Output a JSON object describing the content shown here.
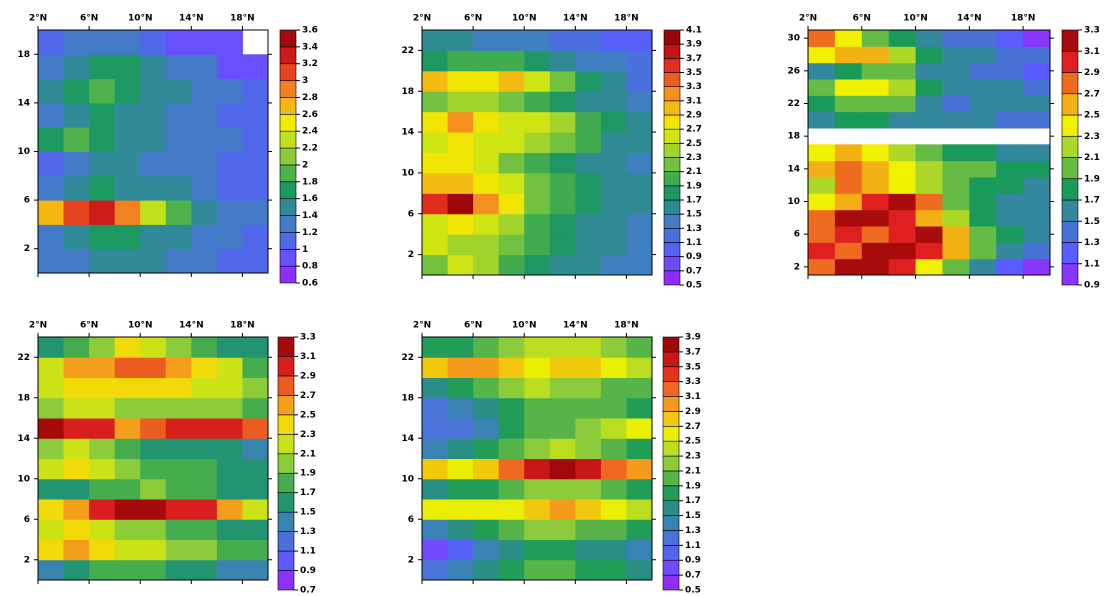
{
  "chart_data": [
    {
      "type": "heatmap",
      "colormap": [
        "#a020ff",
        "#5a5cff",
        "#3f7fc0",
        "#1a9a5a",
        "#8ccc3a",
        "#f0f000",
        "#f59020",
        "#e02020",
        "#8b0000"
      ],
      "x": [
        3,
        5,
        7,
        9,
        11,
        13,
        15,
        17,
        19
      ],
      "xlim": [
        2,
        20
      ],
      "xticks": [
        {
          "value": 2,
          "label": "2°N"
        },
        {
          "value": 6,
          "label": "6°N"
        },
        {
          "value": 10,
          "label": "10°N"
        },
        {
          "value": 14,
          "label": "14°N"
        },
        {
          "value": 18,
          "label": "18°N"
        }
      ],
      "y": [
        1,
        3,
        5,
        7,
        9,
        11,
        13,
        15,
        17,
        19
      ],
      "ylim": [
        0,
        20
      ],
      "yticks": [
        2,
        6,
        10,
        14,
        18
      ],
      "z": [
        [
          1.2,
          1.3,
          1.5,
          1.5,
          1.4,
          1.3,
          1.2,
          1.1,
          1.0
        ],
        [
          1.3,
          1.5,
          1.7,
          1.6,
          1.5,
          1.4,
          1.3,
          1.2,
          1.1
        ],
        [
          2.6,
          3.0,
          3.3,
          2.9,
          2.2,
          1.8,
          1.5,
          1.3,
          1.2
        ],
        [
          1.2,
          1.4,
          1.6,
          1.5,
          1.5,
          1.4,
          1.3,
          1.1,
          1.0
        ],
        [
          1.1,
          1.3,
          1.4,
          1.4,
          1.3,
          1.2,
          1.2,
          1.1,
          1.0
        ],
        [
          1.6,
          1.9,
          1.7,
          1.5,
          1.4,
          1.3,
          1.2,
          1.2,
          1.1
        ],
        [
          1.3,
          1.5,
          1.6,
          1.5,
          1.4,
          1.3,
          1.2,
          1.1,
          1.1
        ],
        [
          1.4,
          1.6,
          1.8,
          1.7,
          1.5,
          1.4,
          1.3,
          1.2,
          1.1
        ],
        [
          1.3,
          1.5,
          1.6,
          1.6,
          1.5,
          1.3,
          1.2,
          0.9,
          0.8
        ],
        [
          1.1,
          1.2,
          1.3,
          1.2,
          1.1,
          0.9,
          0.8,
          0.8,
          null
        ]
      ],
      "colorbar_ticks": [
        0.6,
        0.8,
        1,
        1.2,
        1.4,
        1.6,
        1.8,
        2,
        2.2,
        2.4,
        2.6,
        2.8,
        3,
        3.2,
        3.4,
        3.6
      ]
    },
    {
      "type": "heatmap",
      "colormap": [
        "#a020ff",
        "#5a5cff",
        "#3f7fc0",
        "#1a9a5a",
        "#8ccc3a",
        "#f0f000",
        "#f59020",
        "#e02020",
        "#8b0000"
      ],
      "x": [
        3,
        5,
        7,
        9,
        11,
        13,
        15,
        17,
        19
      ],
      "xlim": [
        2,
        20
      ],
      "xticks": [
        {
          "value": 2,
          "label": "2°N"
        },
        {
          "value": 6,
          "label": "6°N"
        },
        {
          "value": 10,
          "label": "10°N"
        },
        {
          "value": 14,
          "label": "14°N"
        },
        {
          "value": 18,
          "label": "18°N"
        }
      ],
      "y": [
        1,
        3,
        5,
        7,
        9,
        11,
        13,
        15,
        17,
        19,
        21,
        23
      ],
      "ylim": [
        0,
        24
      ],
      "yticks": [
        2,
        6,
        10,
        14,
        18,
        22
      ],
      "z": [
        [
          2.2,
          2.5,
          2.4,
          2.0,
          1.8,
          1.6,
          1.5,
          1.4,
          1.4
        ],
        [
          2.6,
          2.4,
          2.3,
          2.1,
          1.9,
          1.7,
          1.6,
          1.5,
          1.4
        ],
        [
          2.5,
          2.7,
          2.5,
          2.3,
          2.0,
          1.8,
          1.6,
          1.5,
          1.4
        ],
        [
          3.6,
          3.9,
          3.2,
          2.7,
          2.2,
          1.9,
          1.7,
          1.5,
          1.5
        ],
        [
          2.9,
          3.0,
          2.8,
          2.5,
          2.2,
          1.9,
          1.7,
          1.6,
          1.5
        ],
        [
          2.8,
          2.7,
          2.5,
          2.2,
          2.0,
          1.8,
          1.6,
          1.5,
          1.4
        ],
        [
          2.5,
          2.7,
          2.6,
          2.5,
          2.4,
          2.2,
          1.9,
          1.6,
          1.5
        ],
        [
          2.7,
          3.1,
          2.8,
          2.6,
          2.6,
          2.3,
          2.0,
          1.7,
          1.5
        ],
        [
          2.2,
          2.4,
          2.3,
          2.2,
          2.0,
          1.8,
          1.6,
          1.5,
          1.4
        ],
        [
          2.9,
          2.7,
          2.8,
          2.9,
          2.5,
          2.1,
          1.8,
          1.5,
          1.2
        ],
        [
          1.8,
          1.9,
          2.0,
          2.0,
          1.8,
          1.6,
          1.4,
          1.3,
          1.2
        ],
        [
          1.5,
          1.5,
          1.4,
          1.4,
          1.3,
          1.2,
          1.1,
          1.0,
          0.9
        ]
      ],
      "colorbar_ticks": [
        0.5,
        0.7,
        0.9,
        1.1,
        1.3,
        1.5,
        1.7,
        1.9,
        2.1,
        2.3,
        2.5,
        2.7,
        2.9,
        3.1,
        3.3,
        3.5,
        3.7,
        3.9,
        4.1
      ]
    },
    {
      "type": "heatmap",
      "colormap": [
        "#a020ff",
        "#5a5cff",
        "#3f7fc0",
        "#1a9a5a",
        "#8ccc3a",
        "#f0f000",
        "#f59020",
        "#e02020",
        "#8b0000"
      ],
      "x": [
        3,
        5,
        7,
        9,
        11,
        13,
        15,
        17,
        19
      ],
      "xlim": [
        2,
        20
      ],
      "xticks": [
        {
          "value": 2,
          "label": "2°N"
        },
        {
          "value": 6,
          "label": "6°N"
        },
        {
          "value": 10,
          "label": "10°N"
        },
        {
          "value": 14,
          "label": "14°N"
        },
        {
          "value": 18,
          "label": "18°N"
        }
      ],
      "y": [
        2,
        4,
        6,
        8,
        10,
        12,
        14,
        16,
        18,
        20,
        22,
        24,
        26,
        28,
        30
      ],
      "ylim": [
        1,
        31
      ],
      "yticks": [
        2,
        6,
        10,
        14,
        18,
        22,
        26,
        30
      ],
      "z": [
        [
          2.8,
          3.2,
          3.3,
          2.9,
          2.4,
          1.9,
          1.5,
          1.1,
          0.9
        ],
        [
          2.9,
          2.8,
          3.1,
          3.2,
          2.9,
          2.6,
          2.0,
          1.5,
          1.3
        ],
        [
          2.7,
          2.9,
          2.7,
          3.0,
          3.3,
          2.6,
          2.0,
          1.7,
          1.5
        ],
        [
          2.8,
          3.1,
          3.2,
          3.0,
          2.6,
          2.1,
          1.8,
          1.6,
          1.5
        ],
        [
          2.3,
          2.6,
          3.0,
          3.2,
          2.7,
          2.0,
          1.8,
          1.6,
          1.5
        ],
        [
          2.2,
          2.7,
          2.5,
          2.3,
          2.1,
          1.9,
          1.8,
          1.7,
          1.6
        ],
        [
          2.5,
          2.7,
          2.6,
          2.4,
          2.2,
          2.0,
          1.9,
          1.8,
          1.7
        ],
        [
          2.3,
          2.6,
          2.3,
          2.1,
          1.9,
          1.8,
          1.7,
          1.6,
          1.6
        ],
        [
          null,
          null,
          null,
          null,
          null,
          null,
          null,
          null,
          null
        ],
        [
          1.6,
          1.7,
          1.7,
          1.6,
          1.5,
          1.5,
          1.5,
          1.4,
          1.4
        ],
        [
          1.8,
          1.9,
          2.0,
          1.9,
          1.6,
          1.4,
          1.5,
          1.6,
          1.5
        ],
        [
          2.0,
          2.3,
          2.3,
          2.1,
          1.8,
          1.6,
          1.5,
          1.5,
          1.4
        ],
        [
          1.6,
          1.8,
          2.0,
          1.9,
          1.6,
          1.5,
          1.4,
          1.3,
          1.2
        ],
        [
          2.3,
          2.6,
          2.5,
          2.2,
          1.8,
          1.6,
          1.5,
          1.4,
          1.3
        ],
        [
          2.7,
          2.4,
          2.0,
          1.7,
          1.5,
          1.4,
          1.3,
          1.1,
          1.0
        ]
      ],
      "colorbar_ticks": [
        0.9,
        1.1,
        1.3,
        1.5,
        1.7,
        1.9,
        2.1,
        2.3,
        2.5,
        2.7,
        2.9,
        3.1,
        3.3
      ]
    },
    {
      "type": "heatmap",
      "colormap": [
        "#a020ff",
        "#5a5cff",
        "#3f7fc0",
        "#1a9a5a",
        "#8ccc3a",
        "#f0f000",
        "#f59020",
        "#e02020",
        "#8b0000"
      ],
      "x": [
        3,
        5,
        7,
        9,
        11,
        13,
        15,
        17,
        19
      ],
      "xlim": [
        2,
        20
      ],
      "xticks": [
        {
          "value": 2,
          "label": "2°N"
        },
        {
          "value": 6,
          "label": "6°N"
        },
        {
          "value": 10,
          "label": "10°N"
        },
        {
          "value": 14,
          "label": "14°N"
        },
        {
          "value": 18,
          "label": "18°N"
        }
      ],
      "y": [
        1,
        3,
        5,
        7,
        9,
        11,
        13,
        15,
        17,
        19,
        21,
        23
      ],
      "ylim": [
        0,
        24
      ],
      "yticks": [
        2,
        6,
        10,
        14,
        18,
        22
      ],
      "z": [
        [
          1.3,
          1.6,
          1.8,
          1.8,
          1.7,
          1.6,
          1.5,
          1.4,
          1.3
        ],
        [
          2.3,
          2.5,
          2.4,
          2.2,
          2.1,
          2.0,
          1.9,
          1.8,
          1.7
        ],
        [
          2.1,
          2.3,
          2.2,
          2.0,
          1.9,
          1.7,
          1.7,
          1.6,
          1.5
        ],
        [
          2.3,
          2.6,
          2.9,
          3.1,
          3.1,
          2.9,
          3.0,
          2.6,
          2.2
        ],
        [
          1.5,
          1.6,
          1.7,
          1.8,
          1.9,
          1.8,
          1.7,
          1.6,
          1.5
        ],
        [
          2.2,
          2.3,
          2.1,
          1.9,
          1.8,
          1.7,
          1.7,
          1.6,
          1.5
        ],
        [
          2.0,
          2.2,
          1.9,
          1.7,
          1.6,
          1.6,
          1.5,
          1.5,
          1.4
        ],
        [
          3.1,
          2.9,
          3.0,
          2.5,
          2.7,
          2.9,
          3.0,
          3.0,
          2.8
        ],
        [
          2.0,
          2.2,
          2.1,
          2.0,
          2.0,
          2.0,
          1.9,
          1.9,
          1.8
        ],
        [
          2.1,
          2.3,
          2.3,
          2.4,
          2.4,
          2.3,
          2.2,
          2.1,
          1.9
        ],
        [
          2.2,
          2.5,
          2.6,
          2.8,
          2.7,
          2.5,
          2.3,
          2.1,
          1.8
        ],
        [
          1.6,
          1.8,
          2.0,
          2.3,
          2.2,
          2.0,
          1.8,
          1.6,
          1.5
        ]
      ],
      "colorbar_ticks": [
        0.7,
        0.9,
        1.1,
        1.3,
        1.5,
        1.7,
        1.9,
        2.1,
        2.3,
        2.5,
        2.7,
        2.9,
        3.1,
        3.3
      ]
    },
    {
      "type": "heatmap",
      "colormap": [
        "#a020ff",
        "#5a5cff",
        "#3f7fc0",
        "#1a9a5a",
        "#8ccc3a",
        "#f0f000",
        "#f59020",
        "#e02020",
        "#8b0000"
      ],
      "x": [
        3,
        5,
        7,
        9,
        11,
        13,
        15,
        17,
        19
      ],
      "xlim": [
        2,
        20
      ],
      "xticks": [
        {
          "value": 2,
          "label": "2°N"
        },
        {
          "value": 6,
          "label": "6°N"
        },
        {
          "value": 10,
          "label": "10°N"
        },
        {
          "value": 14,
          "label": "14°N"
        },
        {
          "value": 18,
          "label": "18°N"
        }
      ],
      "y": [
        1,
        3,
        5,
        7,
        9,
        11,
        13,
        15,
        17,
        19,
        21,
        23
      ],
      "ylim": [
        0,
        24
      ],
      "yticks": [
        2,
        6,
        10,
        14,
        18,
        22
      ],
      "z": [
        [
          1.2,
          1.4,
          1.6,
          1.8,
          2.0,
          1.9,
          1.8,
          1.7,
          1.5
        ],
        [
          0.8,
          1.0,
          1.3,
          1.5,
          1.7,
          1.7,
          1.6,
          1.5,
          1.4
        ],
        [
          1.4,
          1.6,
          1.7,
          1.9,
          2.1,
          2.1,
          2.0,
          1.9,
          1.7
        ],
        [
          2.5,
          2.6,
          2.6,
          2.6,
          2.8,
          2.9,
          2.8,
          2.6,
          2.3
        ],
        [
          1.5,
          1.7,
          1.8,
          2.0,
          2.2,
          2.2,
          2.1,
          2.0,
          1.8
        ],
        [
          2.7,
          2.6,
          2.8,
          3.2,
          3.6,
          3.7,
          3.5,
          3.2,
          2.9
        ],
        [
          1.3,
          1.5,
          1.7,
          1.9,
          2.2,
          2.3,
          2.1,
          2.0,
          1.8
        ],
        [
          1.1,
          1.2,
          1.4,
          1.7,
          1.9,
          2.0,
          2.1,
          2.4,
          2.6
        ],
        [
          1.1,
          1.3,
          1.5,
          1.7,
          1.9,
          2.0,
          2.0,
          1.9,
          1.8
        ],
        [
          1.6,
          1.8,
          2.0,
          2.2,
          2.3,
          2.2,
          2.1,
          2.0,
          1.9
        ],
        [
          2.8,
          2.9,
          3.0,
          2.8,
          2.6,
          2.7,
          2.7,
          2.6,
          2.4
        ],
        [
          1.7,
          1.8,
          1.9,
          2.1,
          2.3,
          2.4,
          2.3,
          2.2,
          2.0
        ]
      ],
      "colorbar_ticks": [
        0.5,
        0.7,
        0.9,
        1.1,
        1.3,
        1.5,
        1.7,
        1.9,
        2.1,
        2.3,
        2.5,
        2.7,
        2.9,
        3.1,
        3.3,
        3.5,
        3.7,
        3.9
      ]
    }
  ]
}
